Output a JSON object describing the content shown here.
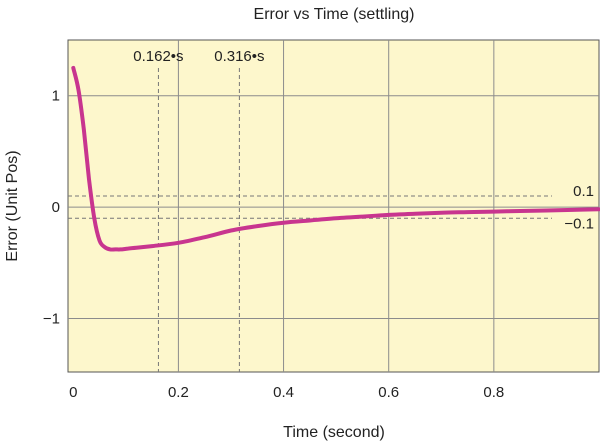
{
  "chart_data": {
    "type": "line",
    "title": "Error vs Time (settling)",
    "xlabel": "Time (second)",
    "ylabel": "Error (Unit Pos)",
    "xlim": [
      -0.01,
      1.0
    ],
    "ylim": [
      -1.48,
      1.5
    ],
    "xticks": [
      0,
      0.2,
      0.4,
      0.6,
      0.8
    ],
    "xtick_labels": [
      "0",
      "0.2",
      "0.4",
      "0.6",
      "0.8"
    ],
    "yticks": [
      1,
      0,
      -1
    ],
    "ytick_labels": [
      "1",
      "0",
      "−1"
    ],
    "grid": true,
    "plot_background": "#fdf7cc",
    "series": [
      {
        "color": "#c8358f",
        "x": [
          0,
          0.01,
          0.02,
          0.03,
          0.04,
          0.05,
          0.06,
          0.07,
          0.08,
          0.09,
          0.1,
          0.12,
          0.15,
          0.2,
          0.25,
          0.3,
          0.35,
          0.4,
          0.45,
          0.5,
          0.55,
          0.6,
          0.65,
          0.7,
          0.75,
          0.8,
          0.85,
          0.9,
          0.95,
          1.0
        ],
        "y": [
          1.25,
          1.05,
          0.7,
          0.25,
          -0.1,
          -0.3,
          -0.36,
          -0.38,
          -0.38,
          -0.38,
          -0.375,
          -0.365,
          -0.35,
          -0.32,
          -0.27,
          -0.21,
          -0.17,
          -0.14,
          -0.12,
          -0.1,
          -0.085,
          -0.07,
          -0.06,
          -0.05,
          -0.045,
          -0.04,
          -0.035,
          -0.03,
          -0.025,
          -0.02
        ]
      }
    ],
    "reference_lines": [
      {
        "axis": "y",
        "value": 0.1,
        "label": "0.1"
      },
      {
        "axis": "y",
        "value": -0.1,
        "label": "−0.1"
      },
      {
        "axis": "x",
        "value": 0.162,
        "label": "0.162•s"
      },
      {
        "axis": "x",
        "value": 0.316,
        "label": "0.316•s"
      }
    ]
  }
}
